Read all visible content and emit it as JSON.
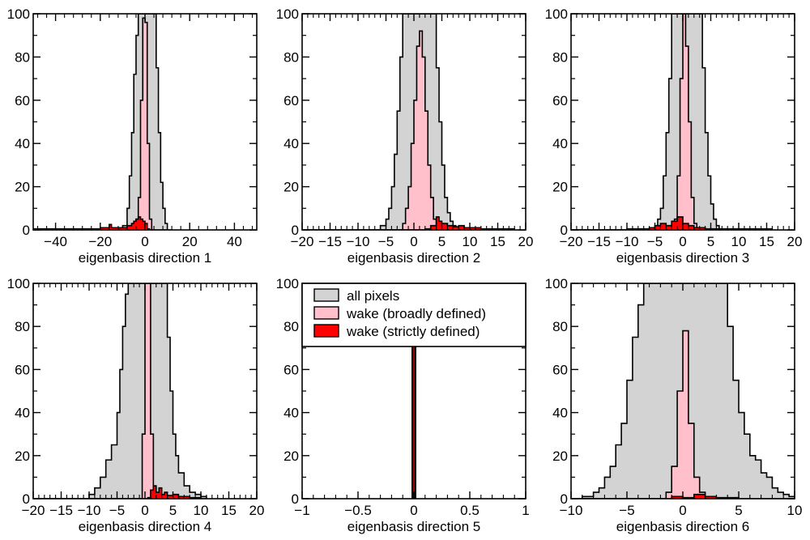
{
  "colors": {
    "all_pixels": "#d3d3d3",
    "wake_broad": "#ffc0cb",
    "wake_strict": "#ff0000",
    "line": "#000000"
  },
  "legend": {
    "entries": [
      {
        "label": "all pixels",
        "color": "#d3d3d3"
      },
      {
        "label": "wake (broadly defined)",
        "color": "#ffc0cb"
      },
      {
        "label": "wake (strictly defined)",
        "color": "#ff0000"
      }
    ],
    "placement": "top (panel 5)"
  },
  "chart_data": [
    {
      "type": "histogram",
      "xlabel": "eigenbasis direction 1",
      "xlim": [
        -50,
        50
      ],
      "ylim": [
        0,
        100
      ],
      "xticks": [
        -40,
        -20,
        0,
        20,
        40
      ],
      "xtick_labels": [
        "−40",
        "−20",
        "0",
        "20",
        "40"
      ],
      "yticks": [
        0,
        20,
        40,
        60,
        80,
        100
      ],
      "series": [
        {
          "name": "all pixels",
          "x": [
            -50,
            -10,
            -8,
            -7,
            -6,
            -5,
            -4,
            -3,
            -2,
            1,
            2,
            3,
            4,
            5,
            6,
            7,
            8,
            9,
            10,
            12
          ],
          "y": [
            0,
            2,
            10,
            25,
            45,
            72,
            90,
            100,
            100,
            100,
            100,
            100,
            100,
            75,
            45,
            22,
            10,
            3,
            0,
            0
          ]
        },
        {
          "name": "wake (broadly defined)",
          "x": [
            -50,
            -5,
            -4,
            -3,
            -2,
            -1,
            0,
            1,
            2,
            3,
            4
          ],
          "y": [
            0,
            2,
            5,
            15,
            60,
            98,
            96,
            40,
            5,
            0,
            0
          ]
        },
        {
          "name": "wake (strictly defined)",
          "x": [
            -50,
            -40,
            -30,
            -20,
            -16,
            -15,
            -12,
            -10,
            -8,
            -6,
            -5,
            -4,
            -3,
            -2,
            -1,
            0,
            1,
            2
          ],
          "y": [
            0.5,
            0.5,
            0.5,
            1,
            2.5,
            1,
            1,
            1,
            2,
            3,
            4,
            5,
            6,
            5,
            4,
            3,
            0.5,
            0
          ]
        }
      ]
    },
    {
      "type": "histogram",
      "xlabel": "eigenbasis direction 2",
      "xlim": [
        -20,
        20
      ],
      "ylim": [
        0,
        100
      ],
      "xticks": [
        -20,
        -15,
        -10,
        -5,
        0,
        5,
        10,
        15,
        20
      ],
      "xtick_labels": [
        "−20",
        "−15",
        "−10",
        "−5",
        "0",
        "5",
        "10",
        "15",
        "20"
      ],
      "yticks": [
        0,
        20,
        40,
        60,
        80,
        100
      ],
      "series": [
        {
          "name": "all pixels",
          "x": [
            -20,
            -6,
            -5,
            -4.5,
            -4,
            -3.5,
            -3,
            -2.5,
            -2,
            -1.5,
            3.5,
            4,
            4.5,
            5,
            5.5,
            6,
            6.5,
            7,
            7.5,
            8
          ],
          "y": [
            0,
            2,
            5,
            10,
            20,
            35,
            55,
            80,
            100,
            100,
            100,
            75,
            50,
            30,
            15,
            8,
            4,
            2,
            1,
            0
          ]
        },
        {
          "name": "wake (broadly defined)",
          "x": [
            -20,
            -2,
            -1.5,
            -1,
            -0.5,
            0,
            0.5,
            1,
            1.5,
            2,
            2.5,
            3,
            3.5,
            4
          ],
          "y": [
            0,
            3,
            10,
            20,
            40,
            60,
            85,
            92,
            80,
            55,
            30,
            15,
            5,
            0
          ]
        },
        {
          "name": "wake (strictly defined)",
          "x": [
            -20,
            2,
            3,
            4,
            4.5,
            5,
            6,
            7,
            8,
            9,
            10,
            12,
            14,
            16,
            18
          ],
          "y": [
            0,
            0.5,
            2,
            6,
            4,
            3,
            2,
            1.5,
            2,
            1,
            1,
            0.5,
            0.5,
            0.5,
            0
          ]
        }
      ]
    },
    {
      "type": "histogram",
      "xlabel": "eigenbasis direction 3",
      "xlim": [
        -20,
        20
      ],
      "ylim": [
        0,
        100
      ],
      "xticks": [
        -20,
        -15,
        -10,
        -5,
        0,
        5,
        10,
        15,
        20
      ],
      "xtick_labels": [
        "−20",
        "−15",
        "−10",
        "−5",
        "0",
        "5",
        "10",
        "15",
        "20"
      ],
      "yticks": [
        0,
        20,
        40,
        60,
        80,
        100
      ],
      "series": [
        {
          "name": "all pixels",
          "x": [
            -20,
            -4.5,
            -4,
            -3.5,
            -3,
            -2.5,
            -2,
            -1.5,
            2.5,
            3,
            3.5,
            4,
            4.5,
            5,
            5.5,
            6,
            6.5
          ],
          "y": [
            0,
            5,
            10,
            25,
            45,
            70,
            100,
            100,
            100,
            100,
            75,
            45,
            25,
            12,
            5,
            2,
            0
          ]
        },
        {
          "name": "wake (broadly defined)",
          "x": [
            -20,
            -1.5,
            -1,
            -0.5,
            0,
            0.5,
            1,
            1.5,
            2,
            2.5
          ],
          "y": [
            0,
            5,
            25,
            70,
            100,
            85,
            50,
            15,
            3,
            0
          ]
        },
        {
          "name": "wake (strictly defined)",
          "x": [
            -20,
            -10,
            -6,
            -5,
            -4,
            -3,
            -2,
            -1,
            0,
            1,
            2,
            4,
            6,
            10,
            16
          ],
          "y": [
            0,
            0.5,
            1,
            2,
            3,
            2,
            4,
            6,
            3,
            2,
            1,
            0.5,
            0.5,
            0.5,
            0
          ]
        }
      ]
    },
    {
      "type": "histogram",
      "xlabel": "eigenbasis direction 4",
      "xlim": [
        -20,
        20
      ],
      "ylim": [
        0,
        100
      ],
      "xticks": [
        -20,
        -15,
        -10,
        -5,
        0,
        5,
        10,
        15,
        20
      ],
      "xtick_labels": [
        "−20",
        "−15",
        "−10",
        "−5",
        "0",
        "5",
        "10",
        "15",
        "20"
      ],
      "yticks": [
        0,
        20,
        40,
        60,
        80,
        100
      ],
      "series": [
        {
          "name": "all pixels",
          "x": [
            -20,
            -10,
            -9,
            -8,
            -7,
            -6,
            -5,
            -4.5,
            -4,
            -3.5,
            -3,
            -2.5,
            3.5,
            4,
            4.5,
            5,
            5.5,
            6,
            7,
            8,
            9,
            10,
            11
          ],
          "y": [
            0,
            2,
            5,
            10,
            18,
            25,
            40,
            60,
            80,
            95,
            100,
            100,
            100,
            75,
            50,
            30,
            20,
            12,
            6,
            3,
            2,
            1,
            0
          ]
        },
        {
          "name": "wake (broadly defined)",
          "x": [
            -20,
            -0.5,
            0,
            0.5,
            1,
            1.5,
            2
          ],
          "y": [
            0,
            30,
            100,
            100,
            30,
            5,
            0
          ]
        },
        {
          "name": "wake (strictly defined)",
          "x": [
            -20,
            0.5,
            1,
            1.5,
            2,
            2.5,
            3,
            3.5,
            4,
            5,
            6,
            7,
            8,
            9,
            10
          ],
          "y": [
            0,
            0.5,
            4,
            6,
            3,
            5,
            2,
            3,
            1.5,
            2,
            1,
            1,
            0.5,
            0.5,
            0
          ]
        }
      ]
    },
    {
      "type": "histogram",
      "xlabel": "eigenbasis direction 5",
      "xlim": [
        -1,
        1
      ],
      "ylim": [
        0,
        100
      ],
      "xticks": [
        -1,
        -0.5,
        0,
        0.5,
        1
      ],
      "xtick_labels": [
        "−1",
        "−0.5",
        "0",
        "0.5",
        "1"
      ],
      "yticks": [
        0,
        20,
        40,
        60,
        80,
        100
      ],
      "series": [
        {
          "name": "all pixels",
          "x": [
            -0.015,
            0.015
          ],
          "y": [
            71,
            0
          ]
        },
        {
          "name": "wake (broadly defined)",
          "x": [
            -0.015,
            0.015
          ],
          "y": [
            71,
            0
          ]
        },
        {
          "name": "wake (strictly defined)",
          "x": [
            -0.01,
            0.01
          ],
          "y": [
            71,
            0
          ]
        }
      ]
    },
    {
      "type": "histogram",
      "xlabel": "eigenbasis direction 6",
      "xlim": [
        -10,
        10
      ],
      "ylim": [
        0,
        100
      ],
      "xticks": [
        -10,
        -5,
        0,
        5,
        10
      ],
      "xtick_labels": [
        "−10",
        "−5",
        "0",
        "5",
        "10"
      ],
      "yticks": [
        0,
        20,
        40,
        60,
        80,
        100
      ],
      "series": [
        {
          "name": "all pixels",
          "x": [
            -10,
            -9,
            -8,
            -7.5,
            -7,
            -6.5,
            -6,
            -5.5,
            -5,
            -4.5,
            -4,
            -3.5,
            3.5,
            4,
            4.5,
            5,
            5.5,
            6,
            6.5,
            7,
            7.5,
            8,
            8.5,
            9,
            9.5,
            10
          ],
          "y": [
            0,
            1,
            3,
            5,
            10,
            15,
            25,
            35,
            55,
            75,
            90,
            100,
            100,
            80,
            55,
            40,
            30,
            20,
            18,
            12,
            10,
            5,
            3,
            2,
            1,
            0
          ]
        },
        {
          "name": "wake (broadly defined)",
          "x": [
            -10,
            -1.5,
            -1,
            -0.5,
            0,
            0.5,
            1,
            1.5,
            2
          ],
          "y": [
            0,
            3,
            15,
            50,
            78,
            35,
            10,
            3,
            0
          ]
        },
        {
          "name": "wake (strictly defined)",
          "x": [
            -10,
            -1,
            0,
            1,
            2,
            3,
            5
          ],
          "y": [
            0,
            1,
            0.5,
            2,
            1,
            0.5,
            0
          ]
        }
      ]
    }
  ]
}
